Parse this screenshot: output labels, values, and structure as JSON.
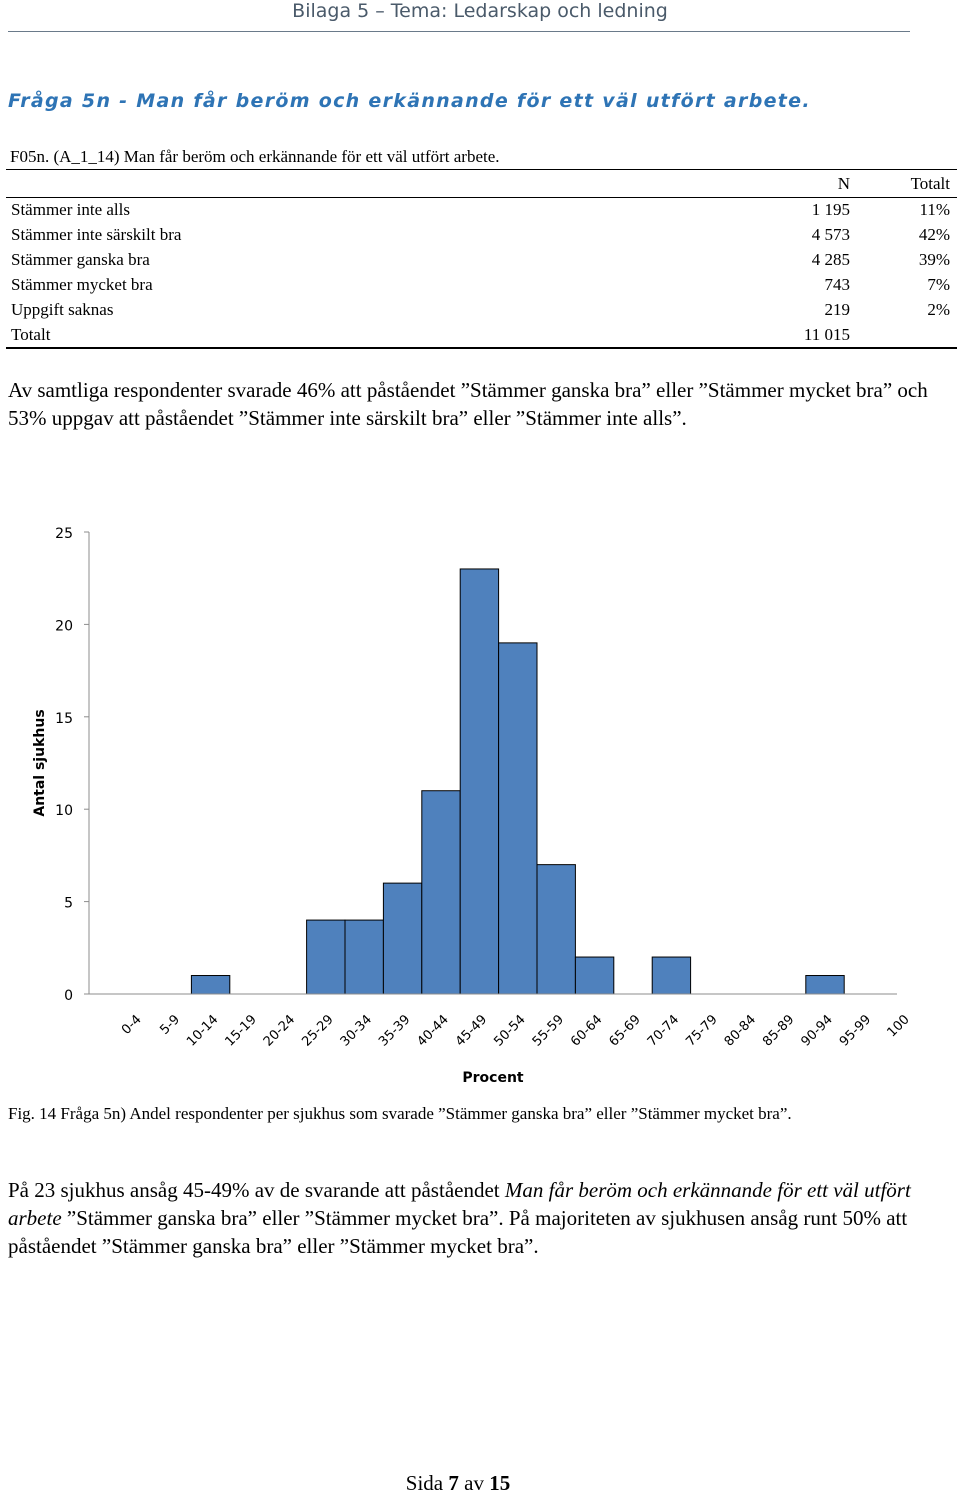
{
  "header": {
    "title": "Bilaga 5 – Tema: Ledarskap och ledning"
  },
  "question_heading": "Fråga 5n - Man får beröm och erkännande för ett väl utfört arbete.",
  "table": {
    "caption": "F05n. (A_1_14) Man får beröm och erkännande för ett väl utfört arbete.",
    "col_n": "N",
    "col_total": "Totalt",
    "rows": [
      {
        "label": "Stämmer inte alls",
        "n": "1 195",
        "pct": "11%"
      },
      {
        "label": "Stämmer inte särskilt bra",
        "n": "4 573",
        "pct": "42%"
      },
      {
        "label": "Stämmer ganska bra",
        "n": "4 285",
        "pct": "39%"
      },
      {
        "label": "Stämmer mycket bra",
        "n": "743",
        "pct": "7%"
      },
      {
        "label": "Uppgift saknas",
        "n": "219",
        "pct": "2%"
      },
      {
        "label": "Totalt",
        "n": "11 015",
        "pct": ""
      }
    ]
  },
  "summary_text": "Av samtliga respondenter svarade 46% att påståendet ”Stämmer ganska bra” eller ”Stämmer mycket bra” och 53% uppgav att påståendet ”Stämmer inte särskilt bra” eller ”Stämmer inte alls”.",
  "chart_data": {
    "type": "bar",
    "xlabel": "Procent",
    "ylabel": "Antal sjukhus",
    "ylim": [
      0,
      25
    ],
    "yticks": [
      0,
      5,
      10,
      15,
      20,
      25
    ],
    "categories": [
      "0-4",
      "5-9",
      "10-14",
      "15-19",
      "20-24",
      "25-29",
      "30-34",
      "35-39",
      "40-44",
      "45-49",
      "50-54",
      "55-59",
      "60-64",
      "65-69",
      "70-74",
      "75-79",
      "80-84",
      "85-89",
      "90-94",
      "95-99",
      "100"
    ],
    "values": [
      0,
      0,
      1,
      0,
      0,
      4,
      4,
      6,
      11,
      23,
      19,
      7,
      2,
      0,
      2,
      0,
      0,
      0,
      1,
      0,
      0
    ],
    "bar_color": "#4f81bd",
    "grid": false
  },
  "figure_caption": "Fig. 14 Fråga 5n) Andel respondenter per sjukhus som svarade ”Stämmer ganska bra” eller ”Stämmer mycket bra”.",
  "conclusion": {
    "part1": "På 23 sjukhus ansåg 45-49% av de svarande att påståendet ",
    "italic": "Man får beröm och erkännande för ett väl utfört arbete",
    "part2": " ”Stämmer ganska bra” eller ”Stämmer mycket bra”. På majoriteten av sjukhusen ansåg runt 50% att påståendet ”Stämmer ganska bra” eller ”Stämmer mycket bra”."
  },
  "footer": {
    "prefix": "Sida ",
    "page": "7",
    "middle": " av ",
    "total": "15"
  }
}
